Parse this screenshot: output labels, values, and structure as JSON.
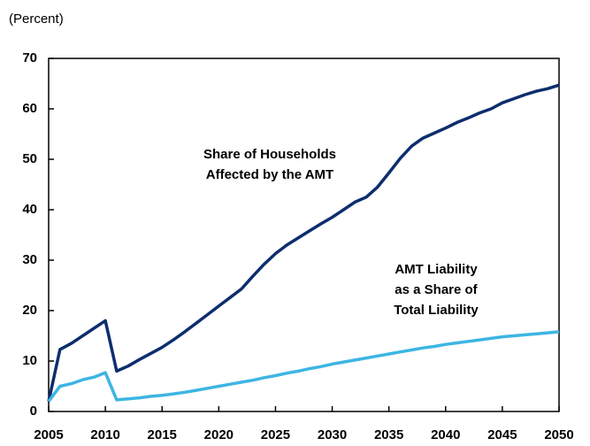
{
  "chart_data": {
    "type": "line",
    "y_label": "(Percent)",
    "x": [
      2005,
      2006,
      2007,
      2008,
      2009,
      2010,
      2011,
      2012,
      2013,
      2014,
      2015,
      2016,
      2017,
      2018,
      2019,
      2020,
      2021,
      2022,
      2023,
      2024,
      2025,
      2026,
      2027,
      2028,
      2029,
      2030,
      2031,
      2032,
      2033,
      2034,
      2035,
      2036,
      2037,
      2038,
      2039,
      2040,
      2041,
      2042,
      2043,
      2044,
      2045,
      2046,
      2047,
      2048,
      2049,
      2050
    ],
    "series": [
      {
        "color": "#0d2d6e",
        "values": [
          2,
          12.3,
          13.5,
          15,
          16.5,
          18,
          8,
          9,
          10.3,
          11.5,
          12.7,
          14.2,
          15.8,
          17.5,
          19.2,
          20.9,
          22.6,
          24.3,
          26.8,
          29.2,
          31.3,
          33,
          34.4,
          35.8,
          37.2,
          38.5,
          40,
          41.5,
          42.5,
          44.5,
          47.3,
          50.2,
          52.6,
          54.2,
          55.2,
          56.2,
          57.3,
          58.2,
          59.2,
          60,
          61.2,
          62,
          62.8,
          63.5,
          64,
          64.7
        ]
      },
      {
        "color": "#3db5e3",
        "values": [
          2,
          5,
          5.5,
          6.3,
          6.8,
          7.7,
          2.3,
          2.5,
          2.7,
          3,
          3.2,
          3.5,
          3.8,
          4.2,
          4.6,
          5,
          5.4,
          5.8,
          6.2,
          6.7,
          7.1,
          7.6,
          8,
          8.5,
          8.9,
          9.4,
          9.8,
          10.2,
          10.6,
          11,
          11.4,
          11.8,
          12.2,
          12.6,
          12.9,
          13.3,
          13.6,
          13.9,
          14.2,
          14.5,
          14.8,
          15,
          15.2,
          15.4,
          15.6,
          15.8
        ]
      }
    ],
    "annotations": [
      [
        "Share of Households",
        "Affected by the AMT"
      ],
      [
        "AMT Liability",
        "as a Share of",
        "Total Liability"
      ]
    ],
    "xlim": [
      2005,
      2050
    ],
    "xticks": [
      2005,
      2010,
      2015,
      2020,
      2025,
      2030,
      2035,
      2040,
      2045,
      2050
    ],
    "ylim": [
      0,
      70
    ],
    "yticks": [
      0,
      10,
      20,
      30,
      40,
      50,
      60,
      70
    ]
  }
}
